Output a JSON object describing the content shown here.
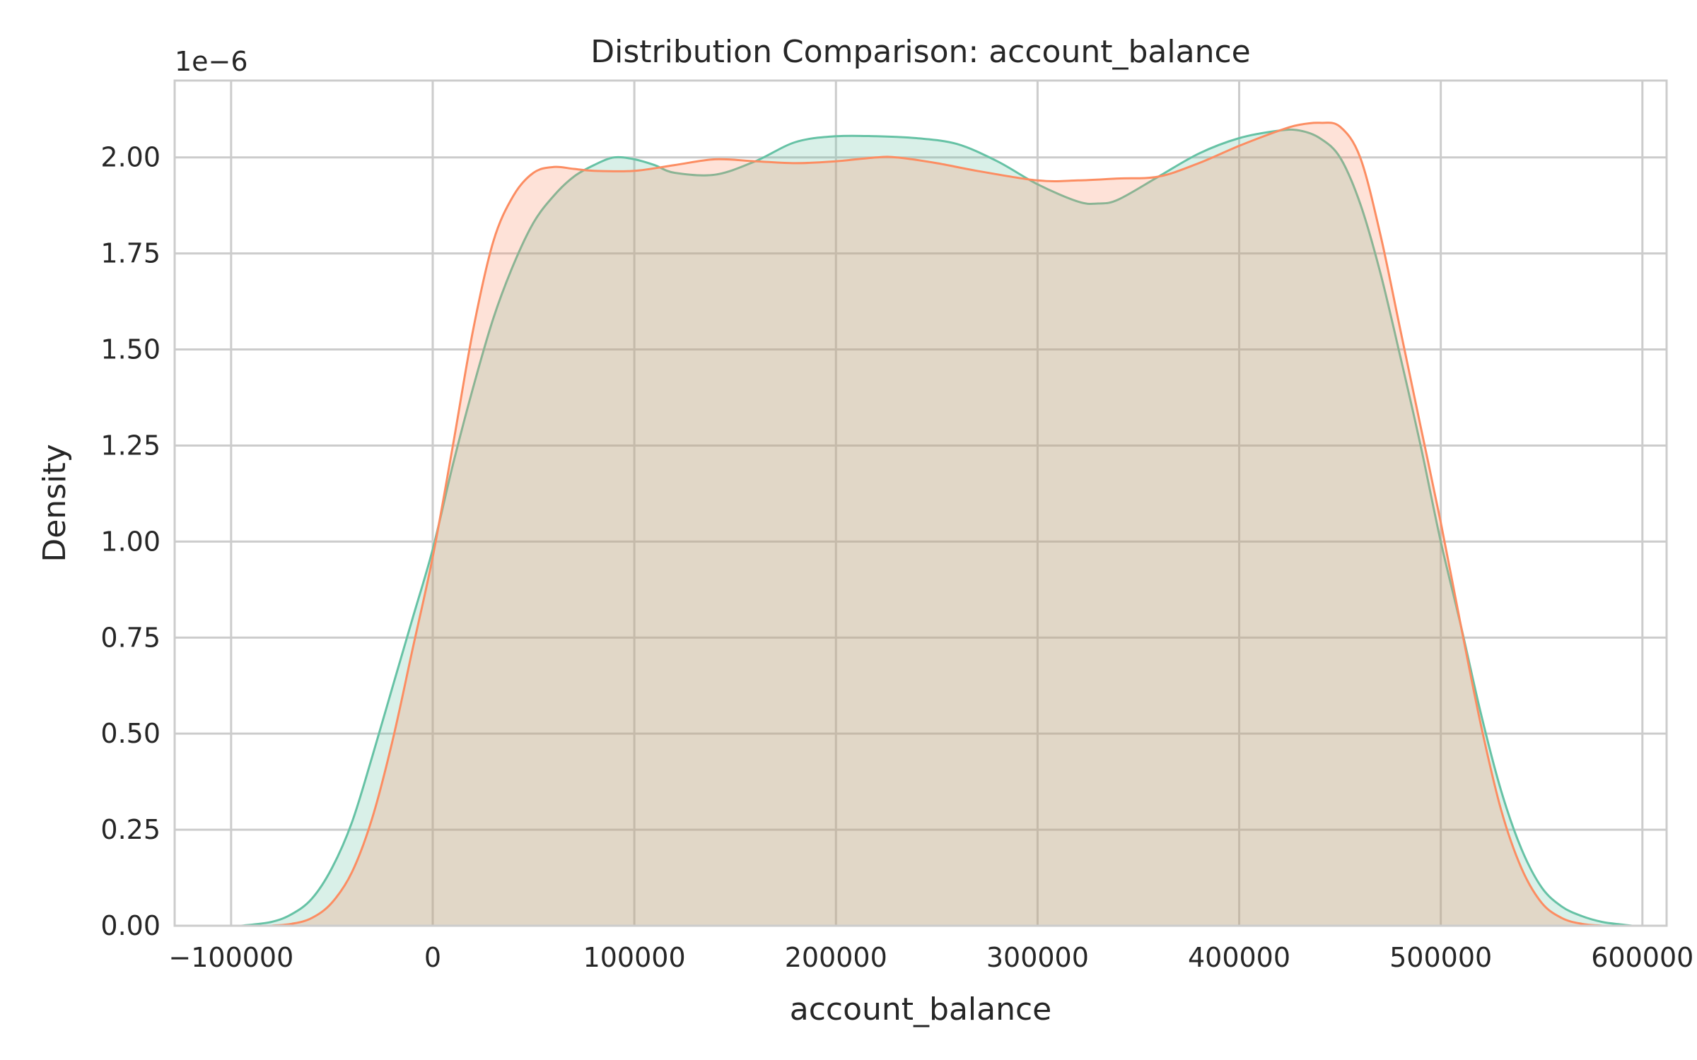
{
  "chart_data": {
    "type": "area",
    "title": "Distribution Comparison: account_balance",
    "xlabel": "account_balance",
    "ylabel": "Density",
    "y_offset_label": "1e−6",
    "xlim": [
      -128000,
      612000
    ],
    "ylim": [
      0,
      2.2
    ],
    "x_ticks": [
      -100000,
      0,
      100000,
      200000,
      300000,
      400000,
      500000,
      600000
    ],
    "x_tick_labels": [
      "−100000",
      "0",
      "100000",
      "200000",
      "300000",
      "400000",
      "500000",
      "600000"
    ],
    "y_ticks": [
      0,
      0.25,
      0.5,
      0.75,
      1.0,
      1.25,
      1.5,
      1.75,
      2.0
    ],
    "y_tick_labels": [
      "0.00",
      "0.25",
      "0.50",
      "0.75",
      "1.00",
      "1.25",
      "1.50",
      "1.75",
      "2.00"
    ],
    "grid": true,
    "legend": "none",
    "series": [
      {
        "color": "#66c2a5",
        "x": [
          -95000,
          -80000,
          -70000,
          -60000,
          -50000,
          -40000,
          -30000,
          -20000,
          -10000,
          0,
          10000,
          20000,
          30000,
          40000,
          50000,
          60000,
          70000,
          80000,
          90000,
          100000,
          110000,
          120000,
          140000,
          160000,
          180000,
          200000,
          220000,
          240000,
          260000,
          280000,
          300000,
          320000,
          330000,
          340000,
          360000,
          380000,
          400000,
          420000,
          430000,
          440000,
          450000,
          460000,
          470000,
          480000,
          490000,
          500000,
          510000,
          520000,
          530000,
          540000,
          550000,
          560000,
          570000,
          580000,
          590000,
          595000
        ],
        "y": [
          0.0,
          0.01,
          0.03,
          0.07,
          0.15,
          0.27,
          0.44,
          0.62,
          0.8,
          0.98,
          1.2,
          1.4,
          1.58,
          1.72,
          1.83,
          1.9,
          1.95,
          1.98,
          2.0,
          1.995,
          1.98,
          1.96,
          1.955,
          1.99,
          2.04,
          2.055,
          2.055,
          2.05,
          2.035,
          1.99,
          1.93,
          1.885,
          1.88,
          1.89,
          1.95,
          2.01,
          2.05,
          2.07,
          2.07,
          2.05,
          2.0,
          1.88,
          1.7,
          1.48,
          1.25,
          1.0,
          0.78,
          0.55,
          0.35,
          0.2,
          0.1,
          0.05,
          0.025,
          0.01,
          0.003,
          0.0
        ]
      },
      {
        "color": "#fc8d62",
        "x": [
          -80000,
          -70000,
          -60000,
          -50000,
          -40000,
          -30000,
          -20000,
          -10000,
          0,
          10000,
          20000,
          30000,
          40000,
          50000,
          60000,
          70000,
          80000,
          100000,
          120000,
          140000,
          160000,
          180000,
          200000,
          220000,
          230000,
          250000,
          270000,
          300000,
          320000,
          340000,
          360000,
          380000,
          400000,
          420000,
          430000,
          440000,
          450000,
          460000,
          470000,
          480000,
          490000,
          500000,
          510000,
          520000,
          530000,
          540000,
          550000,
          560000,
          570000,
          580000
        ],
        "y": [
          0.0,
          0.005,
          0.02,
          0.06,
          0.14,
          0.28,
          0.48,
          0.72,
          0.96,
          1.25,
          1.55,
          1.78,
          1.9,
          1.96,
          1.975,
          1.97,
          1.965,
          1.965,
          1.98,
          1.995,
          1.99,
          1.985,
          1.99,
          2.0,
          2.0,
          1.985,
          1.965,
          1.94,
          1.94,
          1.945,
          1.95,
          1.985,
          2.03,
          2.07,
          2.085,
          2.09,
          2.08,
          2.0,
          1.8,
          1.55,
          1.3,
          1.05,
          0.78,
          0.52,
          0.3,
          0.15,
          0.06,
          0.02,
          0.005,
          0.0
        ]
      }
    ]
  }
}
